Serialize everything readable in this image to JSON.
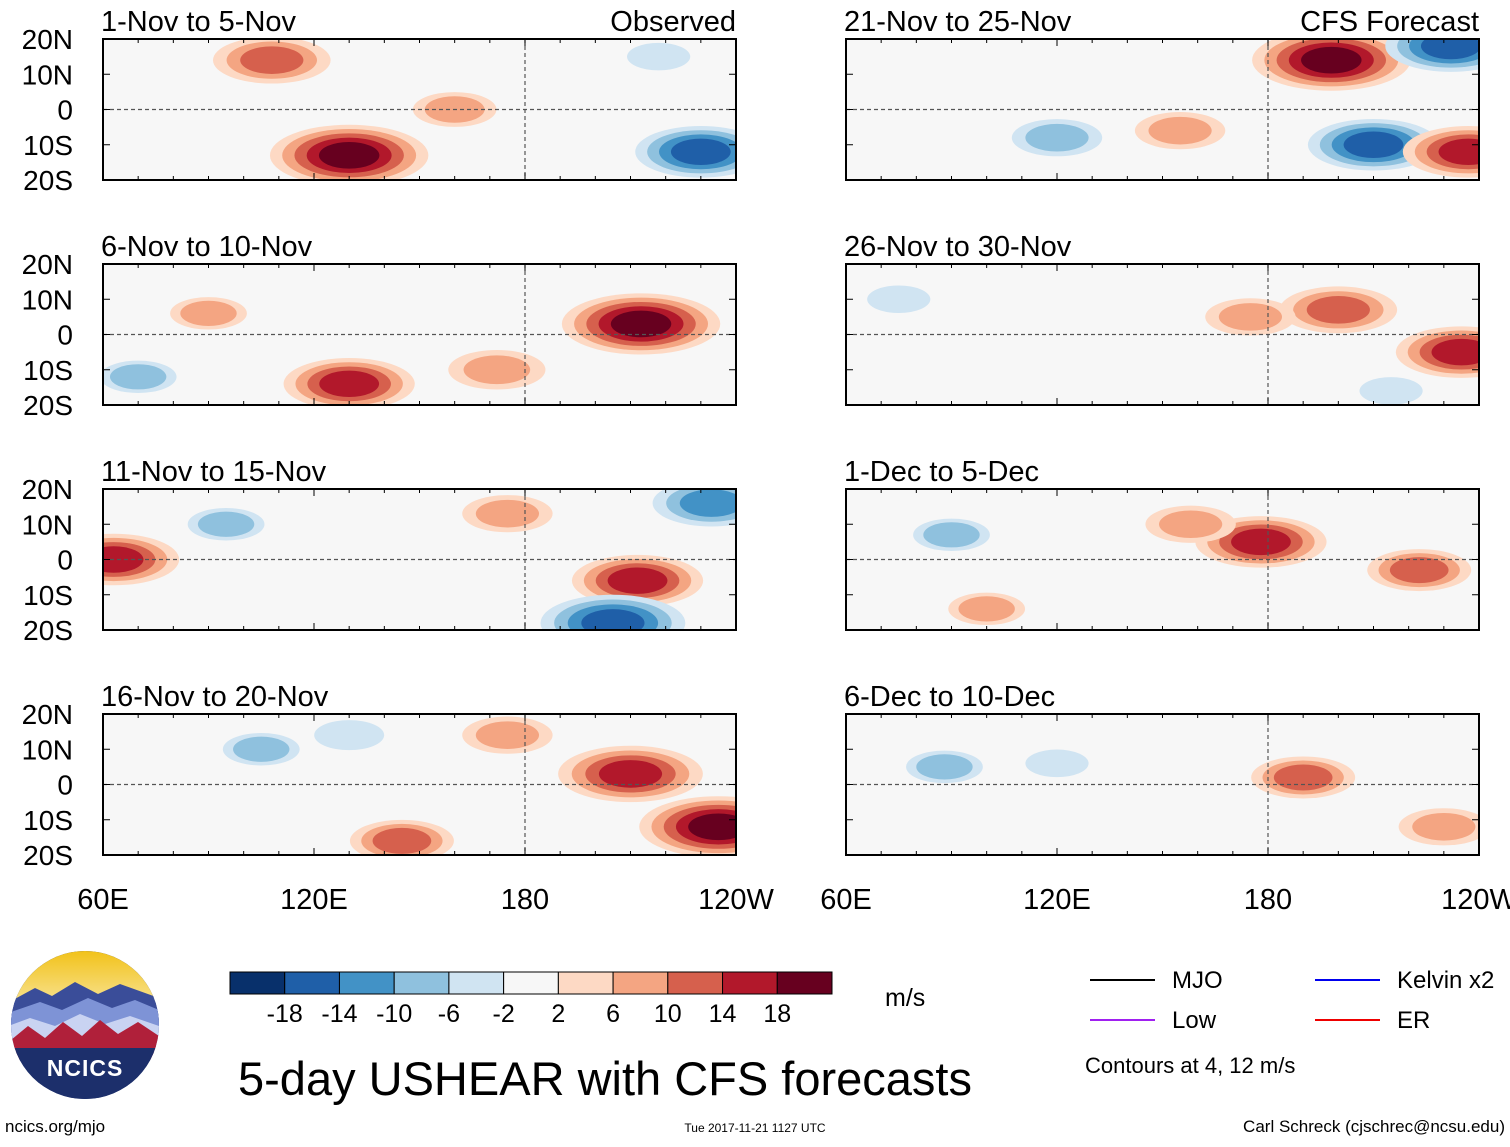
{
  "chart_data": {
    "type": "heatmap",
    "title": "5-day USHEAR with CFS forecasts",
    "units": "m/s",
    "x_ticks": [
      "60E",
      "120E",
      "180",
      "120W"
    ],
    "y_ticks": [
      "20N",
      "10N",
      "0",
      "10S",
      "20S"
    ],
    "lon_range": [
      60,
      240
    ],
    "lat_range": [
      -20,
      20
    ],
    "colorbar": {
      "colors": [
        "#08306b",
        "#1f5fa8",
        "#4292c6",
        "#8fc1de",
        "#d0e4f2",
        "#f7f7f7",
        "#fdd9c4",
        "#f4a582",
        "#d6604d",
        "#b2182b",
        "#67001f"
      ],
      "labels": [
        "-18",
        "-14",
        "-10",
        "-6",
        "-2",
        "2",
        "6",
        "10",
        "14",
        "18"
      ]
    },
    "legend": [
      {
        "name": "MJO",
        "color": "#000000"
      },
      {
        "name": "Kelvin x2",
        "color": "#0000ee"
      },
      {
        "name": "Low",
        "color": "#a020f0"
      },
      {
        "name": "ER",
        "color": "#ee0000"
      }
    ],
    "contour_note": "Contours at 4, 12 m/s",
    "panels": [
      {
        "label": "1-Nov to 5-Nov",
        "tag": "Observed",
        "anomalies": [
          {
            "lon": 130,
            "lat": -13,
            "v": 18
          },
          {
            "lon": 108,
            "lat": 14,
            "v": 12
          },
          {
            "lon": 160,
            "lat": 0,
            "v": 7
          },
          {
            "lon": 230,
            "lat": -12,
            "v": -14
          },
          {
            "lon": 218,
            "lat": 15,
            "v": -4
          }
        ]
      },
      {
        "label": "6-Nov to 10-Nov",
        "tag": "",
        "anomalies": [
          {
            "lon": 213,
            "lat": 3,
            "v": 18
          },
          {
            "lon": 130,
            "lat": -14,
            "v": 14
          },
          {
            "lon": 90,
            "lat": 6,
            "v": 6
          },
          {
            "lon": 172,
            "lat": -10,
            "v": 9
          },
          {
            "lon": 70,
            "lat": -12,
            "v": -6
          }
        ]
      },
      {
        "label": "11-Nov to 15-Nov",
        "tag": "",
        "anomalies": [
          {
            "lon": 63,
            "lat": 0,
            "v": 14
          },
          {
            "lon": 212,
            "lat": -6,
            "v": 14
          },
          {
            "lon": 175,
            "lat": 13,
            "v": 8
          },
          {
            "lon": 205,
            "lat": -18,
            "v": -16
          },
          {
            "lon": 233,
            "lat": 16,
            "v": -12
          },
          {
            "lon": 95,
            "lat": 10,
            "v": -6
          }
        ]
      },
      {
        "label": "16-Nov to 20-Nov",
        "tag": "",
        "anomalies": [
          {
            "lon": 210,
            "lat": 3,
            "v": 16
          },
          {
            "lon": 235,
            "lat": -12,
            "v": 18
          },
          {
            "lon": 175,
            "lat": 14,
            "v": 8
          },
          {
            "lon": 105,
            "lat": 10,
            "v": -6
          },
          {
            "lon": 130,
            "lat": 14,
            "v": -5
          },
          {
            "lon": 145,
            "lat": -16,
            "v": 10
          }
        ]
      },
      {
        "label": "21-Nov to 25-Nov",
        "tag": "CFS Forecast",
        "anomalies": [
          {
            "lon": 198,
            "lat": 14,
            "v": 18
          },
          {
            "lon": 232,
            "lat": 18,
            "v": -14
          },
          {
            "lon": 210,
            "lat": -10,
            "v": -14
          },
          {
            "lon": 237,
            "lat": -12,
            "v": 14
          },
          {
            "lon": 120,
            "lat": -8,
            "v": -8
          },
          {
            "lon": 155,
            "lat": -6,
            "v": 8
          }
        ]
      },
      {
        "label": "26-Nov to 30-Nov",
        "tag": "",
        "anomalies": [
          {
            "lon": 200,
            "lat": 7,
            "v": 12
          },
          {
            "lon": 235,
            "lat": -5,
            "v": 14
          },
          {
            "lon": 175,
            "lat": 5,
            "v": 8
          },
          {
            "lon": 75,
            "lat": 10,
            "v": -4
          },
          {
            "lon": 215,
            "lat": -16,
            "v": -4
          }
        ]
      },
      {
        "label": "1-Dec to 5-Dec",
        "tag": "",
        "anomalies": [
          {
            "lon": 178,
            "lat": 5,
            "v": 14
          },
          {
            "lon": 158,
            "lat": 10,
            "v": 8
          },
          {
            "lon": 223,
            "lat": -3,
            "v": 10
          },
          {
            "lon": 100,
            "lat": -14,
            "v": 6
          },
          {
            "lon": 90,
            "lat": 7,
            "v": -6
          }
        ]
      },
      {
        "label": "6-Dec to 10-Dec",
        "tag": "",
        "anomalies": [
          {
            "lon": 190,
            "lat": 2,
            "v": 10
          },
          {
            "lon": 230,
            "lat": -12,
            "v": 8
          },
          {
            "lon": 88,
            "lat": 5,
            "v": -6
          },
          {
            "lon": 120,
            "lat": 6,
            "v": -4
          }
        ]
      }
    ]
  },
  "logo": {
    "text": "NCICS"
  },
  "footer": {
    "url": "ncics.org/mjo",
    "timestamp": "Tue 2017-11-21 1127 UTC",
    "credit": "Carl Schreck (cjschrec@ncsu.edu)"
  }
}
